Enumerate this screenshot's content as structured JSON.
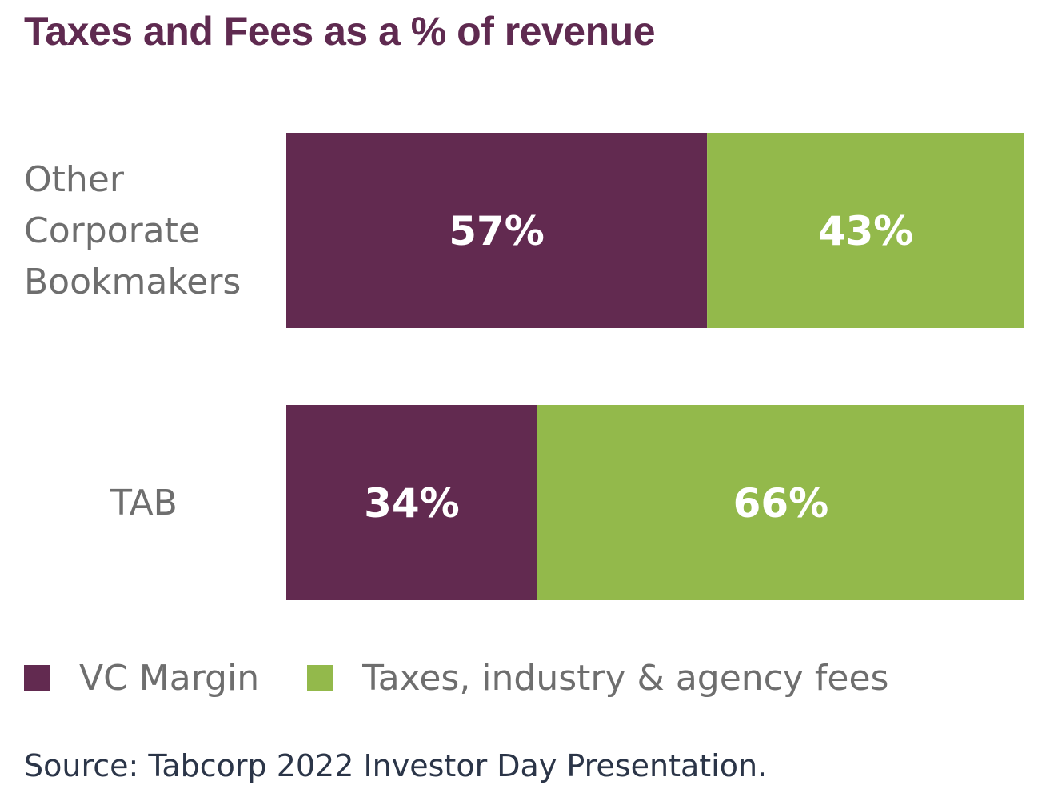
{
  "chart_data": {
    "type": "bar",
    "orientation": "horizontal",
    "stacked": true,
    "title": "Taxes and Fees as a % of revenue",
    "categories": [
      "Other Corporate Bookmakers",
      "TAB"
    ],
    "category_lines": [
      [
        "Other",
        "Corporate",
        "Bookmakers"
      ],
      [
        "TAB"
      ]
    ],
    "series": [
      {
        "name": "VC Margin",
        "values": [
          57,
          34
        ],
        "labels": [
          "57%",
          "34%"
        ],
        "color": "#622a50"
      },
      {
        "name": "Taxes, industry & agency fees",
        "values": [
          43,
          66
        ],
        "labels": [
          "43%",
          "66%"
        ],
        "color": "#93b94b"
      }
    ],
    "xlim": [
      0,
      100
    ],
    "grid": false,
    "legend_position": "bottom-left",
    "source": "Source: Tabcorp 2022 Investor Day Presentation."
  }
}
